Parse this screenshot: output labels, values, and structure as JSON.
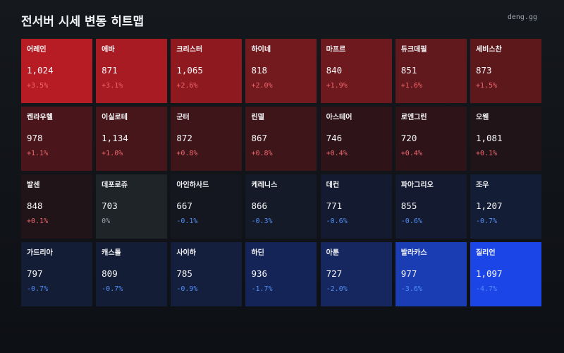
{
  "header": {
    "title": "전서버 시세 변동 히트맵",
    "brand": "deng.gg"
  },
  "tiles": [
    {
      "name": "어레인",
      "price": "1,024",
      "change": "+3.5%",
      "dir": "up",
      "color": "#b71c24"
    },
    {
      "name": "에바",
      "price": "871",
      "change": "+3.1%",
      "dir": "up",
      "color": "#a91b23"
    },
    {
      "name": "크리스터",
      "price": "1,065",
      "change": "+2.6%",
      "dir": "up",
      "color": "#8e1a20"
    },
    {
      "name": "하이네",
      "price": "818",
      "change": "+2.0%",
      "dir": "up",
      "color": "#731a1f"
    },
    {
      "name": "마프르",
      "price": "840",
      "change": "+1.9%",
      "dir": "up",
      "color": "#6e191e"
    },
    {
      "name": "듀크데필",
      "price": "851",
      "change": "+1.6%",
      "dir": "up",
      "color": "#62191d"
    },
    {
      "name": "세비스찬",
      "price": "873",
      "change": "+1.5%",
      "dir": "up",
      "color": "#5d181c"
    },
    {
      "name": "켄라우헬",
      "price": "978",
      "change": "+1.1%",
      "dir": "up",
      "color": "#4a161b"
    },
    {
      "name": "이실로테",
      "price": "1,134",
      "change": "+1.0%",
      "dir": "up",
      "color": "#46161a"
    },
    {
      "name": "군터",
      "price": "872",
      "change": "+0.8%",
      "dir": "up",
      "color": "#3e1519"
    },
    {
      "name": "린델",
      "price": "867",
      "change": "+0.8%",
      "dir": "up",
      "color": "#3e1519"
    },
    {
      "name": "아스테어",
      "price": "746",
      "change": "+0.4%",
      "dir": "up",
      "color": "#2e1418"
    },
    {
      "name": "로엔그린",
      "price": "720",
      "change": "+0.4%",
      "dir": "up",
      "color": "#2e1418"
    },
    {
      "name": "오웬",
      "price": "1,081",
      "change": "+0.1%",
      "dir": "up",
      "color": "#201418"
    },
    {
      "name": "발센",
      "price": "848",
      "change": "+0.1%",
      "dir": "up",
      "color": "#201418"
    },
    {
      "name": "데포로쥬",
      "price": "703",
      "change": "0%",
      "dir": "flat",
      "color": "#1f2429"
    },
    {
      "name": "아인하사드",
      "price": "667",
      "change": "-0.1%",
      "dir": "down",
      "color": "#14171f"
    },
    {
      "name": "케레니스",
      "price": "866",
      "change": "-0.3%",
      "dir": "down",
      "color": "#141a28"
    },
    {
      "name": "데컨",
      "price": "771",
      "change": "-0.6%",
      "dir": "down",
      "color": "#141b31"
    },
    {
      "name": "파아그리오",
      "price": "855",
      "change": "-0.6%",
      "dir": "down",
      "color": "#141b31"
    },
    {
      "name": "조우",
      "price": "1,207",
      "change": "-0.7%",
      "dir": "down",
      "color": "#141d36"
    },
    {
      "name": "가드리아",
      "price": "797",
      "change": "-0.7%",
      "dir": "down",
      "color": "#141d36"
    },
    {
      "name": "캐스톨",
      "price": "809",
      "change": "-0.7%",
      "dir": "down",
      "color": "#141d36"
    },
    {
      "name": "사이하",
      "price": "785",
      "change": "-0.9%",
      "dir": "down",
      "color": "#141e3d"
    },
    {
      "name": "하딘",
      "price": "936",
      "change": "-1.7%",
      "dir": "down",
      "color": "#152456"
    },
    {
      "name": "아툰",
      "price": "727",
      "change": "-2.0%",
      "dir": "down",
      "color": "#16275f"
    },
    {
      "name": "발라카스",
      "price": "977",
      "change": "-3.6%",
      "dir": "down",
      "color": "#1a3db3"
    },
    {
      "name": "질리언",
      "price": "1,097",
      "change": "-4.7%",
      "dir": "down",
      "color": "#1c45e8"
    }
  ]
}
